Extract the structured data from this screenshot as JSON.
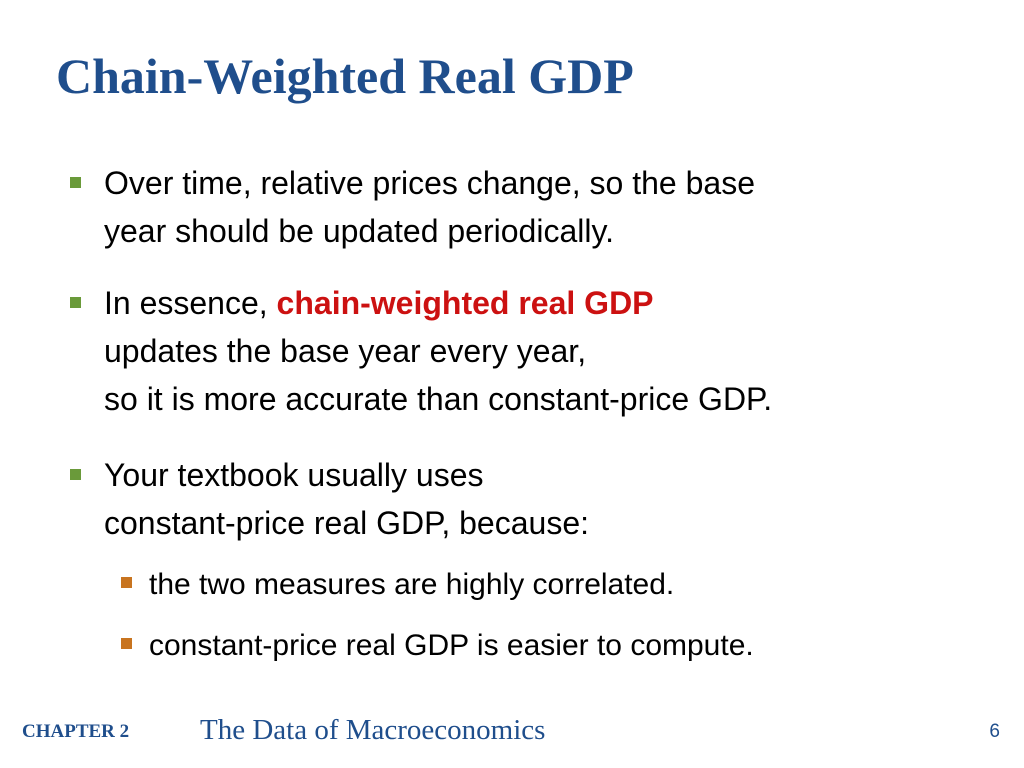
{
  "slide": {
    "title": "Chain-Weighted Real GDP",
    "bullets": [
      {
        "lines": [
          "Over time, relative prices change, so the base",
          "year should be updated periodically."
        ]
      },
      {
        "prefix": "In essence, ",
        "highlight": "chain-weighted real GDP",
        "lines": [
          "updates the base year every year,",
          "so it is more accurate than constant-price GDP."
        ]
      },
      {
        "lines": [
          "Your textbook usually uses",
          "constant-price real GDP, because:"
        ],
        "sub_bullets": [
          "the two measures are highly correlated.",
          "constant-price real GDP is easier to compute."
        ]
      }
    ]
  },
  "footer": {
    "chapter": "CHAPTER 2",
    "book_title": "The Data of Macroeconomics",
    "page_number": "6"
  },
  "colors": {
    "title": "#1f4e8c",
    "highlight": "#cc1111",
    "bullet_marker": "#6a9a3a",
    "sub_bullet_marker": "#c8741f"
  }
}
